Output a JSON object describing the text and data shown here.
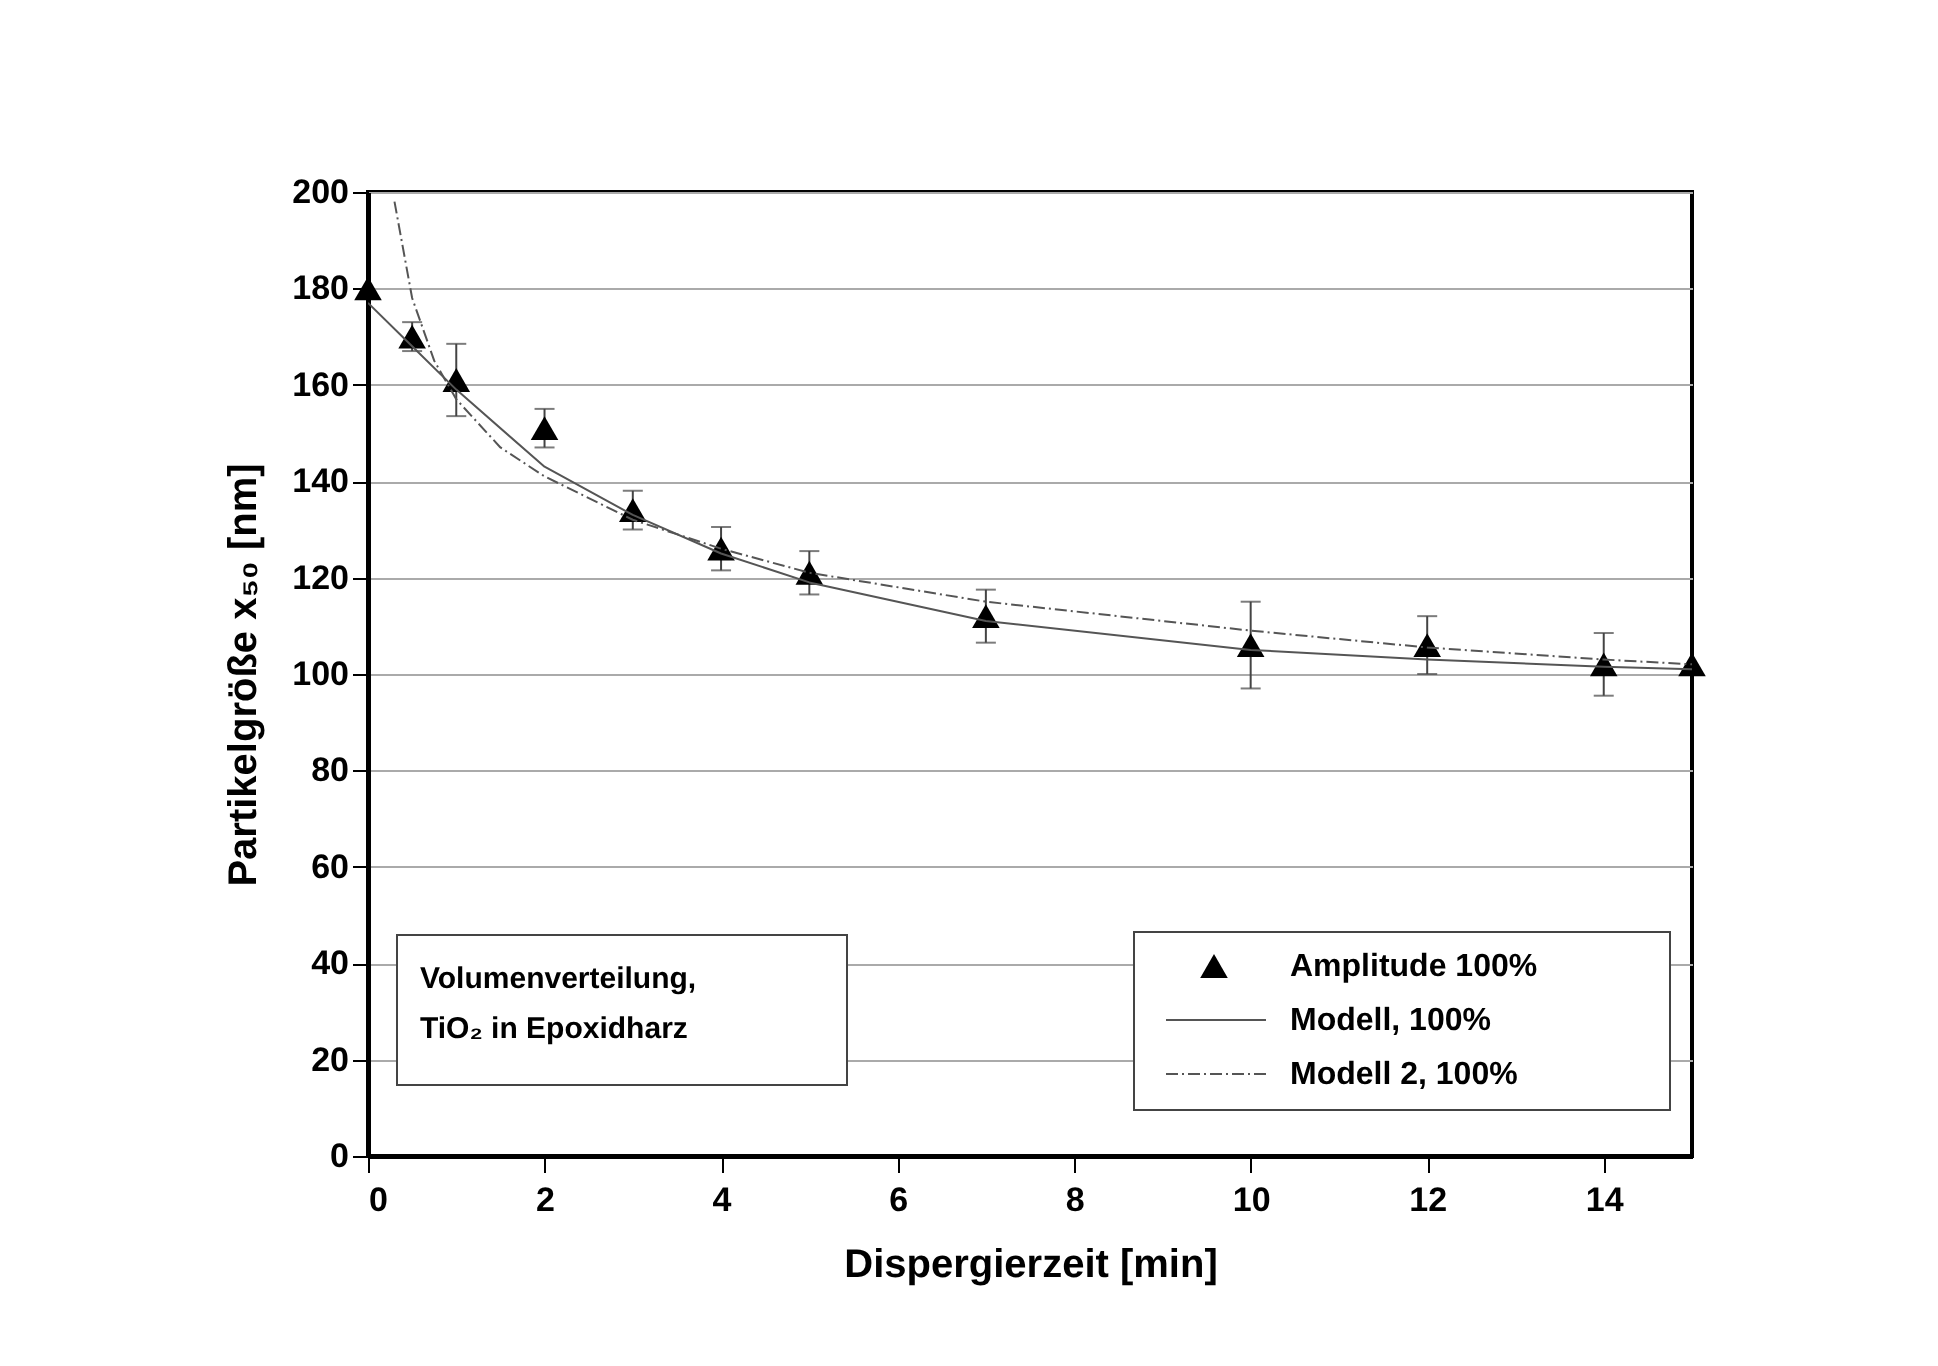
{
  "chart_data": {
    "type": "scatter",
    "xlabel": "Dispergierzeit  [min]",
    "ylabel": "Partikelgröße x₅₀ [nm]",
    "xlim": [
      0,
      15
    ],
    "xticks": [
      0,
      2,
      4,
      6,
      8,
      10,
      12,
      14
    ],
    "ylim": [
      0,
      200
    ],
    "yticks": [
      0,
      20,
      40,
      60,
      80,
      100,
      120,
      140,
      160,
      180,
      200
    ],
    "grid": "y",
    "legend": "bottom right",
    "annotations": [
      "Volumenverteilung,",
      "TiO₂ in Epoxidharz"
    ],
    "series": [
      {
        "name": "Amplitude 100%",
        "color": "#000000",
        "marker": "triangle",
        "x": [
          0,
          0.5,
          1,
          2,
          3,
          4,
          5,
          7,
          10,
          12,
          14,
          15
        ],
        "values": [
          180,
          170,
          161,
          151,
          134,
          126,
          121,
          112,
          106,
          106,
          102,
          102
        ],
        "errors": [
          null,
          3,
          7.5,
          4,
          4,
          4.5,
          4.5,
          5.5,
          9,
          6,
          6.5,
          null
        ]
      },
      {
        "type": "line",
        "name": "Modell, 100%",
        "color": "#555555",
        "line_style": "solid",
        "x": [
          0,
          0.5,
          1,
          2,
          3,
          4,
          5,
          7,
          10,
          12,
          14,
          15
        ],
        "values": [
          177,
          168,
          159,
          143,
          133,
          125,
          119,
          111,
          105,
          103,
          101.5,
          101
        ]
      },
      {
        "type": "line",
        "name": "Modell 2, 100%",
        "color": "#555555",
        "line_style": "dashed",
        "x": [
          0.3,
          0.5,
          0.75,
          1,
          1.5,
          2,
          3,
          4,
          5,
          7,
          10,
          12,
          14,
          15
        ],
        "values": [
          198,
          178,
          165,
          157,
          147,
          141,
          132,
          126,
          121,
          115,
          109,
          105.5,
          103,
          102
        ]
      }
    ]
  }
}
